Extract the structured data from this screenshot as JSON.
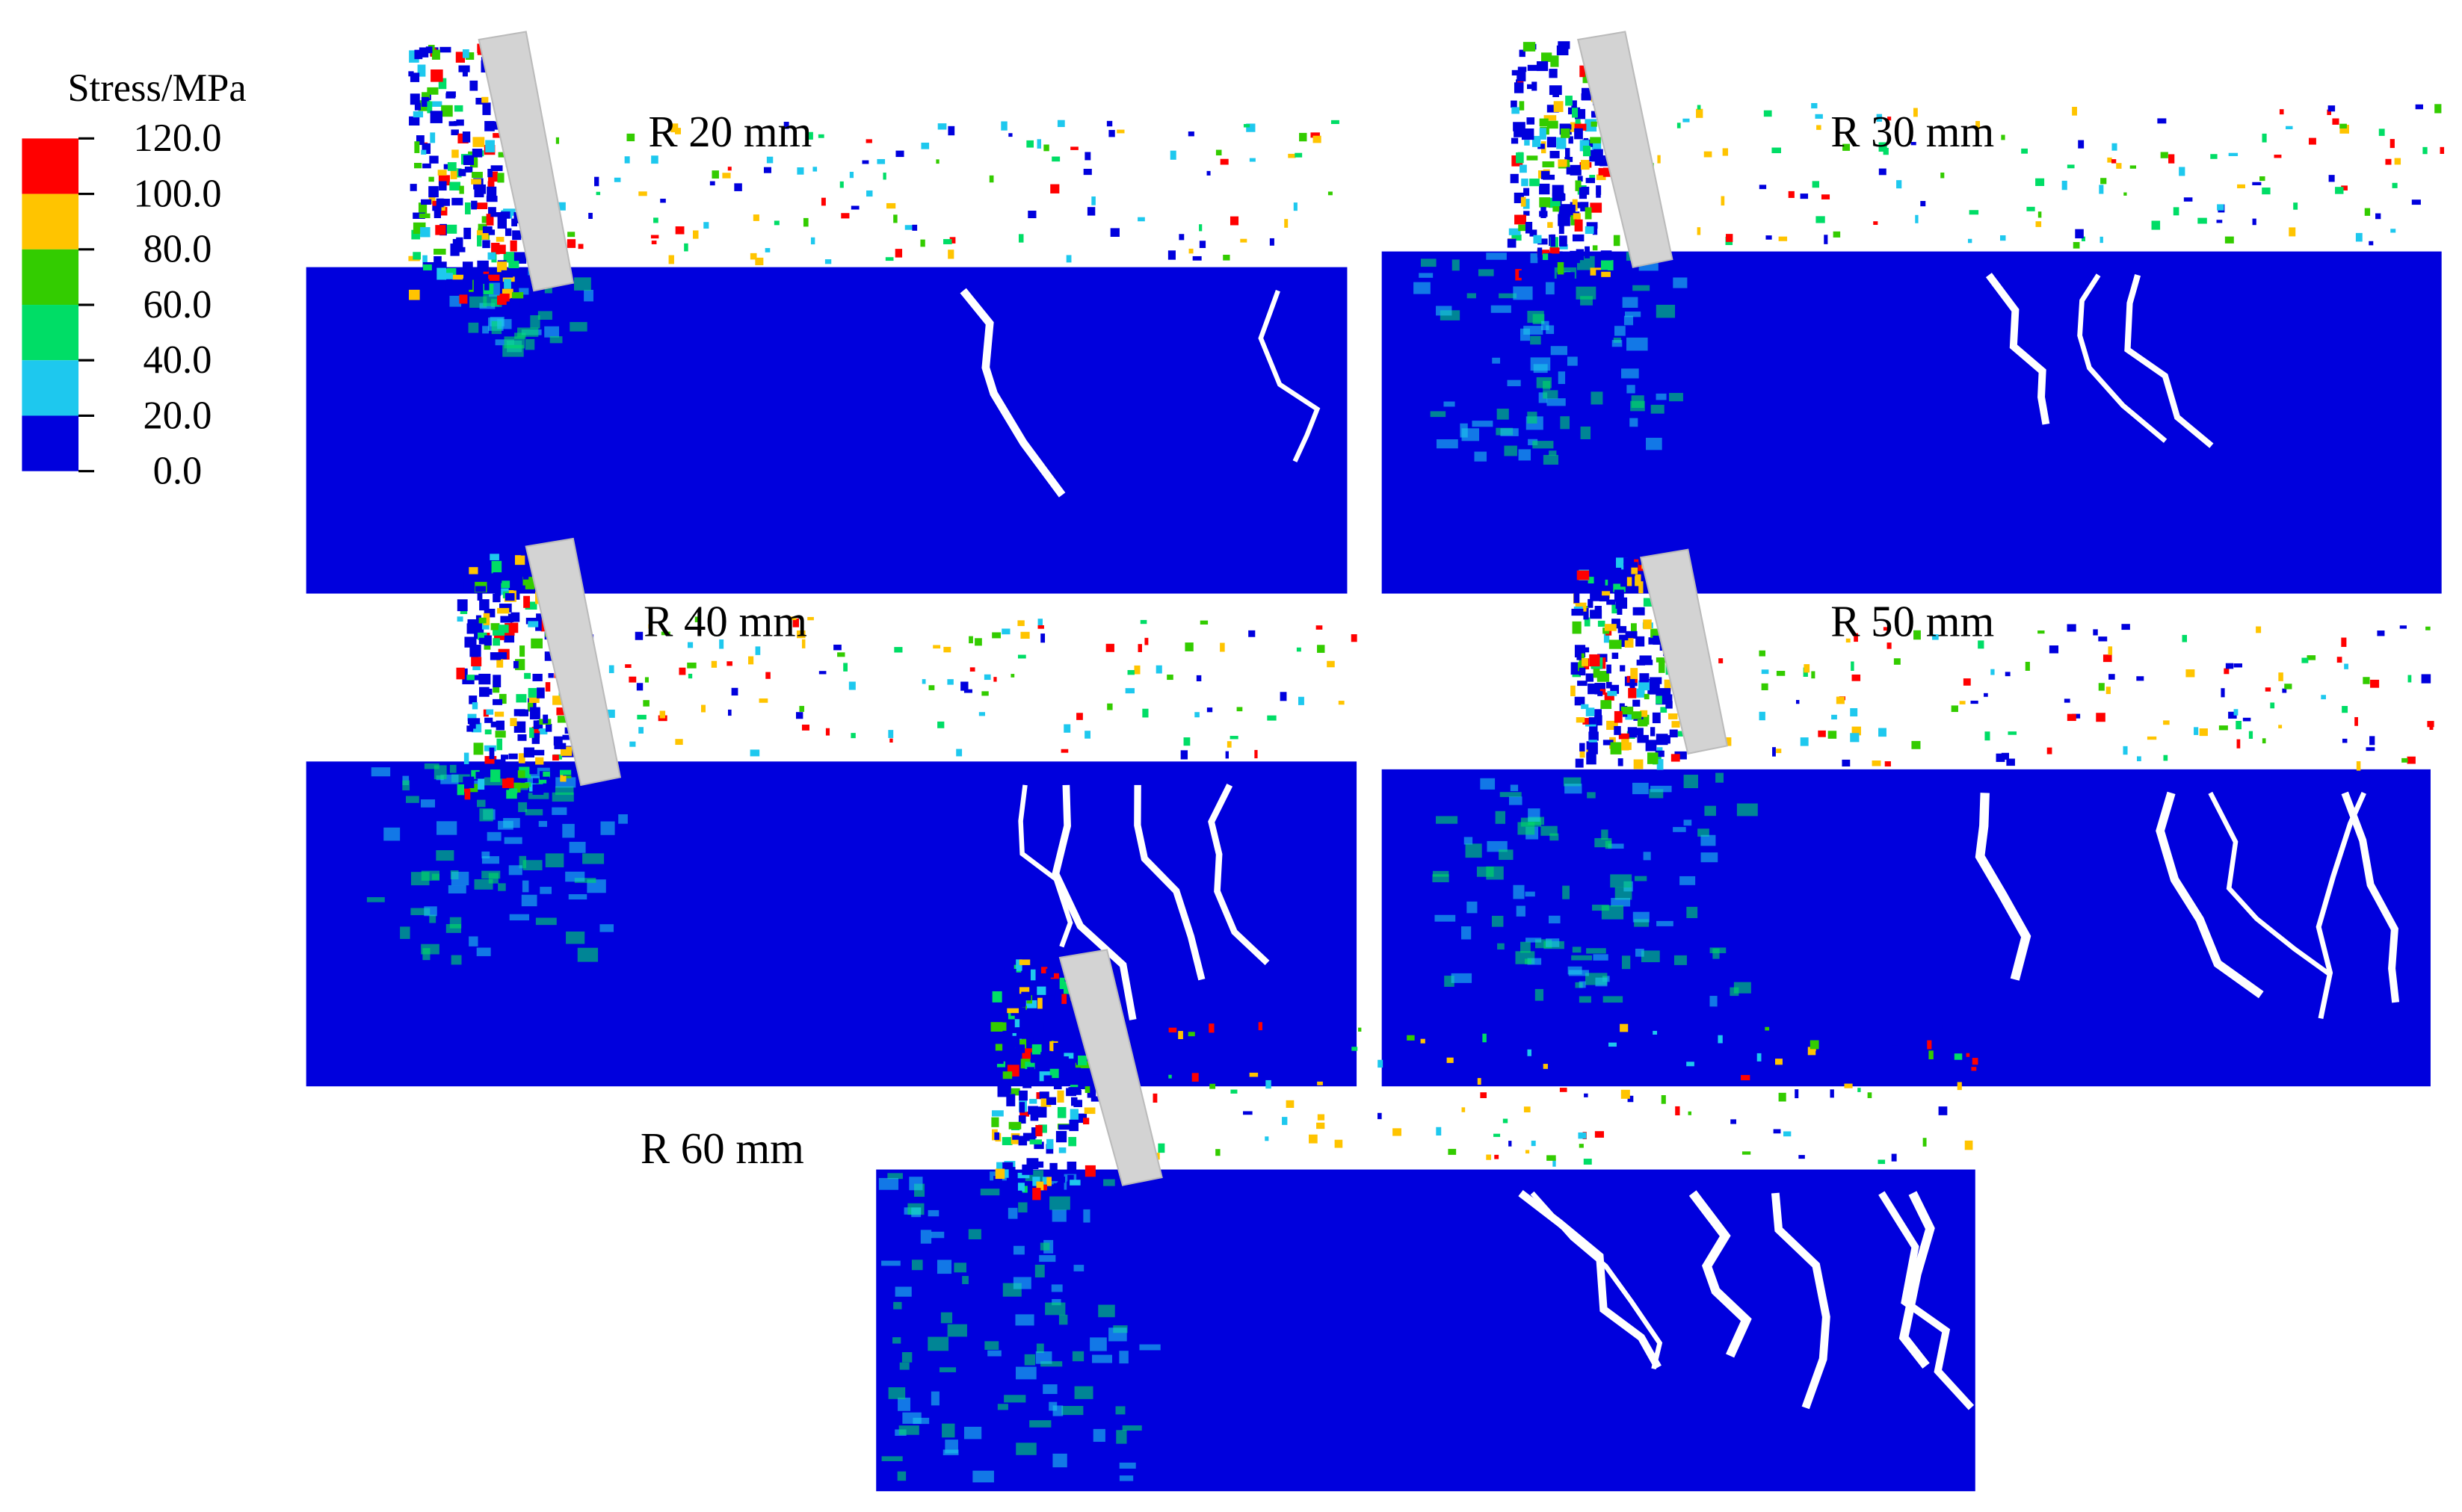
{
  "legend": {
    "title": "Stress/MPa",
    "ticks": [
      {
        "value": 120,
        "label": "120.0"
      },
      {
        "value": 100,
        "label": "100.0"
      },
      {
        "value": 80,
        "label": "80.0"
      },
      {
        "value": 60,
        "label": "60.0"
      },
      {
        "value": 40,
        "label": "40.0"
      },
      {
        "value": 20,
        "label": "20.0"
      },
      {
        "value": 0,
        "label": "0.0"
      }
    ],
    "colors": [
      "#ff0000",
      "#ffc400",
      "#33cc00",
      "#00dd66",
      "#1ec8ee",
      "#0000dd"
    ]
  },
  "panels": [
    {
      "label": "R 20 mm"
    },
    {
      "label": "R 30 mm"
    },
    {
      "label": "R 40 mm"
    },
    {
      "label": "R 50 mm"
    },
    {
      "label": "R 60 mm"
    }
  ]
}
